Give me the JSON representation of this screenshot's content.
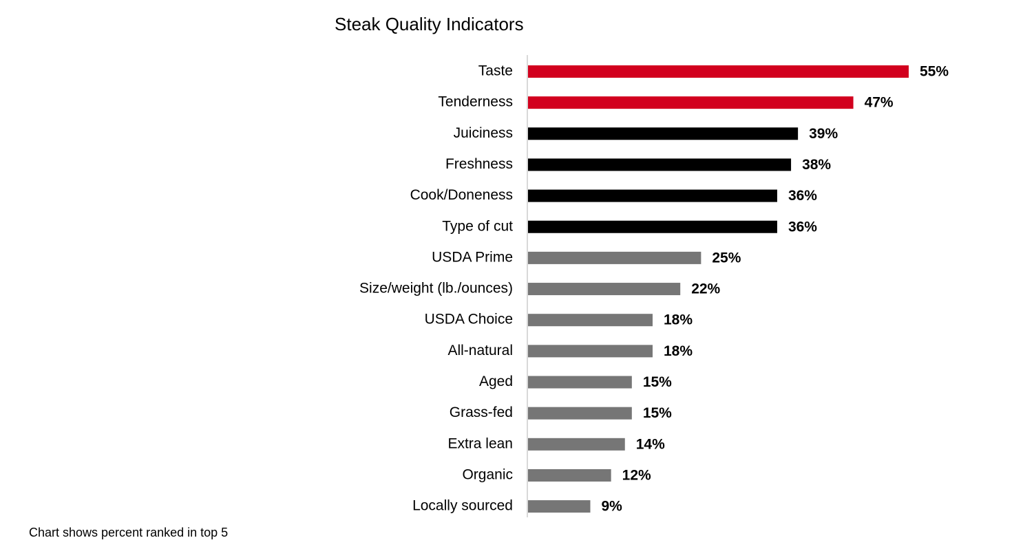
{
  "chart_data": {
    "type": "bar",
    "orientation": "horizontal",
    "title": "Steak Quality Indicators",
    "categories": [
      "Taste",
      "Tenderness",
      "Juiciness",
      "Freshness",
      "Cook/Doneness",
      "Type of cut",
      "USDA Prime",
      "Size/weight (lb./ounces)",
      "USDA Choice",
      "All-natural",
      "Aged",
      "Grass-fed",
      "Extra lean",
      "Organic",
      "Locally sourced"
    ],
    "values": [
      55,
      47,
      39,
      38,
      36,
      36,
      25,
      22,
      18,
      18,
      15,
      15,
      14,
      12,
      9
    ],
    "value_labels": [
      "55%",
      "47%",
      "39%",
      "38%",
      "36%",
      "36%",
      "25%",
      "22%",
      "18%",
      "18%",
      "15%",
      "15%",
      "14%",
      "12%",
      "9%"
    ],
    "colors": [
      "#d2001e",
      "#d2001e",
      "#000000",
      "#000000",
      "#000000",
      "#000000",
      "#767676",
      "#767676",
      "#767676",
      "#767676",
      "#767676",
      "#767676",
      "#767676",
      "#767676",
      "#767676"
    ],
    "note": "Chart shows percent ranked in top 5"
  }
}
